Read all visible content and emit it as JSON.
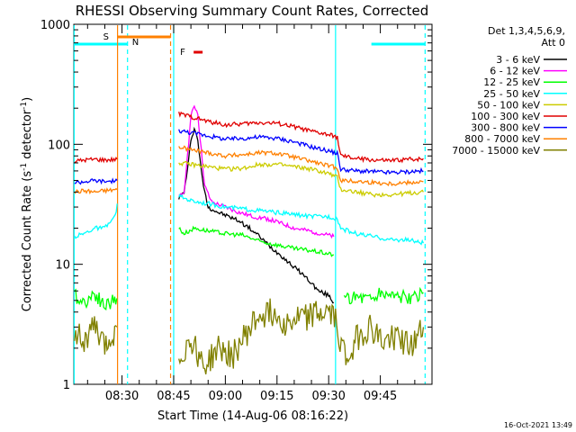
{
  "chart_data": {
    "type": "line",
    "title": "RHESSI Observing Summary Count Rates, Corrected",
    "xlabel": "Start Time (14-Aug-06 08:16:22)",
    "ylabel": "Corrected Count Rate (s",
    "ylabel_sup1": "-1",
    "ylabel_mid": " detector",
    "ylabel_sup2": "-1",
    "ylabel_end": ")",
    "xlim_minutes": [
      496,
      600
    ],
    "ylim": [
      1,
      1000
    ],
    "y_scale": "log",
    "xticks": [
      {
        "label": "08:30",
        "minute": 510
      },
      {
        "label": "08:45",
        "minute": 525
      },
      {
        "label": "09:00",
        "minute": 540
      },
      {
        "label": "09:15",
        "minute": 555
      },
      {
        "label": "09:30",
        "minute": 570
      },
      {
        "label": "09:45",
        "minute": 585
      }
    ],
    "yticks": [
      {
        "label": "1000",
        "value": 1000
      },
      {
        "label": "100",
        "value": 100
      },
      {
        "label": "10",
        "value": 10
      },
      {
        "label": "1",
        "value": 1
      }
    ],
    "legend": {
      "placement": "right",
      "header": [
        "Det 1,3,4,5,6,9,",
        "Att 0"
      ],
      "entries": [
        {
          "label": "3 - 6 keV",
          "color": "#000000"
        },
        {
          "label": "6 - 12 keV",
          "color": "#ff00ff"
        },
        {
          "label": "12 - 25 keV",
          "color": "#00ff00"
        },
        {
          "label": "25 - 50 keV",
          "color": "#00ffff"
        },
        {
          "label": "50 - 100 keV",
          "color": "#cccc00"
        },
        {
          "label": "100 - 300 keV",
          "color": "#e00000"
        },
        {
          "label": "300 - 800 keV",
          "color": "#0000ff"
        },
        {
          "label": "800 - 7000 keV",
          "color": "#ff8000"
        },
        {
          "label": "7000 - 15000 keV",
          "color": "#808000"
        }
      ]
    },
    "flags": [
      {
        "label": "S",
        "color": "#ff8000",
        "start_min": 508.7,
        "end_min": 524.1
      },
      {
        "label": "N",
        "color": "#00ffff",
        "start_min": 511.6,
        "end_min": 511.6
      },
      {
        "label": "F",
        "color": "#e00000",
        "start_min": 530.8,
        "end_min": 533.4
      }
    ],
    "night_bars": [
      {
        "color": "#00ffff",
        "start_min": 496,
        "end_min": 511.6
      },
      {
        "color": "#00ffff",
        "start_min": 582.4,
        "end_min": 598
      }
    ],
    "vertical_lines": [
      {
        "minute": 496.1,
        "color": "#00ffff",
        "style": "solid"
      },
      {
        "minute": 508.7,
        "color": "#ff8000",
        "style": "solid"
      },
      {
        "minute": 511.6,
        "color": "#00ffff",
        "style": "dashed"
      },
      {
        "minute": 524.1,
        "color": "#ff8000",
        "style": "dashed"
      },
      {
        "minute": 525.0,
        "color": "#00ffff",
        "style": "solid"
      },
      {
        "minute": 572.0,
        "color": "#00ffff",
        "style": "solid"
      },
      {
        "minute": 598.0,
        "color": "#00ffff",
        "style": "dashed"
      }
    ],
    "series": [
      {
        "name": "3 - 6 keV",
        "color": "#000000",
        "segments": [
          [
            [
              526.5,
              36
            ],
            [
              528,
              40
            ],
            [
              529,
              60
            ],
            [
              530,
              110
            ],
            [
              531,
              135
            ],
            [
              532,
              110
            ],
            [
              533,
              60
            ],
            [
              534,
              40
            ],
            [
              535,
              30
            ],
            [
              538,
              27
            ],
            [
              541,
              25
            ],
            [
              544,
              23
            ],
            [
              547,
              20
            ],
            [
              550,
              17
            ],
            [
              553,
              14
            ],
            [
              556,
              12
            ],
            [
              559,
              10
            ],
            [
              562,
              8.5
            ],
            [
              565,
              7.0
            ],
            [
              567,
              6.0
            ],
            [
              570,
              5.5
            ],
            [
              571.5,
              4.8
            ]
          ]
        ]
      },
      {
        "name": "6 - 12 keV",
        "color": "#ff00ff",
        "segments": [
          [
            [
              526.5,
              36
            ],
            [
              528,
              40
            ],
            [
              529,
              80
            ],
            [
              530,
              170
            ],
            [
              531,
              210
            ],
            [
              532,
              180
            ],
            [
              533,
              90
            ],
            [
              534,
              45
            ],
            [
              536,
              33
            ],
            [
              540,
              30
            ],
            [
              544,
              27
            ],
            [
              548,
              25
            ],
            [
              552,
              24
            ],
            [
              556,
              22
            ],
            [
              560,
              20
            ],
            [
              564,
              19
            ],
            [
              568,
              18
            ],
            [
              571.5,
              17
            ]
          ]
        ]
      },
      {
        "name": "12 - 25 keV",
        "color": "#00ff00",
        "segments": [
          [
            [
              496.2,
              5.5
            ],
            [
              499,
              4.8
            ],
            [
              502,
              5.8
            ],
            [
              505,
              4.5
            ],
            [
              508.5,
              5.2
            ]
          ],
          [
            [
              526.5,
              20
            ],
            [
              528,
              18
            ],
            [
              531,
              20
            ],
            [
              535,
              19
            ],
            [
              540,
              18
            ],
            [
              545,
              17.5
            ],
            [
              550,
              15.5
            ],
            [
              555,
              14.5
            ],
            [
              560,
              13.5
            ],
            [
              565,
              13
            ],
            [
              571.5,
              12
            ]
          ],
          [
            [
              574.5,
              5.0
            ],
            [
              578,
              5.5
            ],
            [
              582,
              5.2
            ],
            [
              586,
              5.8
            ],
            [
              590,
              5.5
            ],
            [
              594,
              5.0
            ],
            [
              597.5,
              5.8
            ]
          ]
        ]
      },
      {
        "name": "25 - 50 keV",
        "color": "#00ffff",
        "segments": [
          [
            [
              496.2,
              17
            ],
            [
              499,
              18
            ],
            [
              502,
              20
            ],
            [
              505,
              20
            ],
            [
              508,
              25
            ],
            [
              508.6,
              32
            ]
          ],
          [
            [
              526.5,
              37
            ],
            [
              530,
              34
            ],
            [
              535,
              32
            ],
            [
              540,
              30
            ],
            [
              545,
              29
            ],
            [
              550,
              28
            ],
            [
              555,
              27
            ],
            [
              560,
              26
            ],
            [
              565,
              25
            ],
            [
              570,
              25
            ],
            [
              572.5,
              24
            ],
            [
              573.5,
              20
            ],
            [
              578,
              18
            ],
            [
              583,
              17
            ],
            [
              588,
              16
            ],
            [
              593,
              16
            ],
            [
              597.5,
              15
            ]
          ]
        ]
      },
      {
        "name": "50 - 100 keV",
        "color": "#cccc00",
        "segments": [
          [
            [
              526.5,
              70
            ],
            [
              530,
              68
            ],
            [
              535,
              65
            ],
            [
              540,
              62
            ],
            [
              545,
              63
            ],
            [
              550,
              68
            ],
            [
              555,
              68
            ],
            [
              560,
              65
            ],
            [
              565,
              62
            ],
            [
              570,
              57
            ],
            [
              572.5,
              53
            ],
            [
              573.5,
              42
            ],
            [
              578,
              40
            ],
            [
              583,
              38
            ],
            [
              588,
              38
            ],
            [
              593,
              39
            ],
            [
              597.5,
              40
            ]
          ]
        ]
      },
      {
        "name": "100 - 300 keV",
        "color": "#e00000",
        "segments": [
          [
            [
              496.2,
              72
            ],
            [
              499,
              74
            ],
            [
              502,
              75
            ],
            [
              505,
              74
            ],
            [
              508.6,
              75
            ]
          ],
          [
            [
              526.5,
              180
            ],
            [
              530,
              170
            ],
            [
              535,
              155
            ],
            [
              540,
              145
            ],
            [
              545,
              148
            ],
            [
              550,
              152
            ],
            [
              555,
              150
            ],
            [
              560,
              140
            ],
            [
              565,
              128
            ],
            [
              570,
              120
            ],
            [
              572.5,
              115
            ],
            [
              573.5,
              80
            ],
            [
              578,
              76
            ],
            [
              583,
              74
            ],
            [
              588,
              73
            ],
            [
              593,
              75
            ],
            [
              597.5,
              76
            ]
          ]
        ]
      },
      {
        "name": "300 - 800 keV",
        "color": "#0000ff",
        "segments": [
          [
            [
              496.2,
              48
            ],
            [
              499,
              49
            ],
            [
              502,
              50
            ],
            [
              505,
              49
            ],
            [
              508.6,
              50
            ]
          ],
          [
            [
              526.5,
              130
            ],
            [
              530,
              125
            ],
            [
              535,
              118
            ],
            [
              540,
              110
            ],
            [
              545,
              112
            ],
            [
              550,
              115
            ],
            [
              555,
              112
            ],
            [
              560,
              105
            ],
            [
              565,
              95
            ],
            [
              570,
              88
            ],
            [
              572.5,
              84
            ],
            [
              573.5,
              62
            ],
            [
              578,
              60
            ],
            [
              583,
              59
            ],
            [
              588,
              58
            ],
            [
              593,
              59
            ],
            [
              597.5,
              60
            ]
          ]
        ]
      },
      {
        "name": "800 - 7000 keV",
        "color": "#ff8000",
        "segments": [
          [
            [
              496.2,
              40
            ],
            [
              499,
              41
            ],
            [
              502,
              40
            ],
            [
              505,
              41
            ],
            [
              508.6,
              42
            ]
          ],
          [
            [
              526.5,
              95
            ],
            [
              530,
              90
            ],
            [
              535,
              85
            ],
            [
              540,
              80
            ],
            [
              545,
              82
            ],
            [
              550,
              85
            ],
            [
              555,
              84
            ],
            [
              560,
              78
            ],
            [
              565,
              72
            ],
            [
              570,
              66
            ],
            [
              572.5,
              64
            ],
            [
              573.5,
              50
            ],
            [
              578,
              49
            ],
            [
              583,
              48
            ],
            [
              588,
              47
            ],
            [
              593,
              48
            ],
            [
              597.5,
              49
            ]
          ]
        ]
      },
      {
        "name": "7000 - 15000 keV",
        "color": "#808000",
        "segments": [
          [
            [
              496.2,
              3.0
            ],
            [
              499,
              2.2
            ],
            [
              502,
              3.0
            ],
            [
              505,
              2.0
            ],
            [
              508.5,
              3.0
            ]
          ],
          [
            [
              526.5,
              1.6
            ],
            [
              530,
              2.4
            ],
            [
              534,
              1.4
            ],
            [
              538,
              2.0
            ],
            [
              542,
              1.7
            ],
            [
              546,
              2.6
            ],
            [
              550,
              3.8
            ],
            [
              554,
              4.0
            ],
            [
              558,
              3.2
            ],
            [
              562,
              3.6
            ],
            [
              566,
              3.8
            ],
            [
              570,
              4.0
            ],
            [
              572,
              3.4
            ],
            [
              575,
              1.6
            ],
            [
              578,
              2.4
            ],
            [
              582,
              3.0
            ],
            [
              586,
              2.2
            ],
            [
              590,
              2.6
            ],
            [
              594,
              2.0
            ],
            [
              597.5,
              3.0
            ]
          ]
        ]
      }
    ]
  },
  "footer": {
    "date_stamp": "16-Oct-2021 13:49"
  }
}
